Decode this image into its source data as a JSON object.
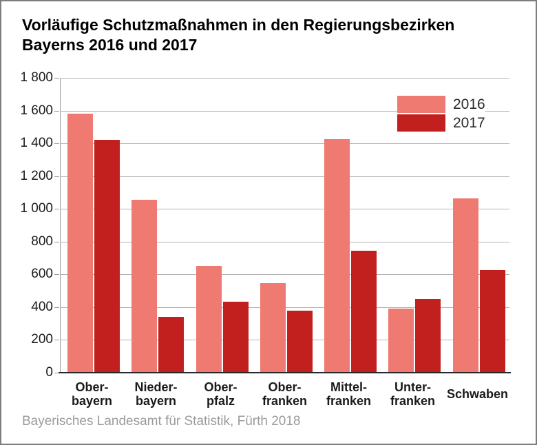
{
  "title": "Vorläufige Schutzmaßnahmen in den Regierungsbezirken Bayerns 2016 und 2017",
  "source": "Bayerisches Landesamt für Statistik, Fürth 2018",
  "colors": {
    "series_2016": "#ee7a72",
    "series_2017": "#c2201f",
    "grid": "#b3b3b3",
    "bottom_axis": "#262626",
    "left_axis": "#999999"
  },
  "chart_data": {
    "type": "bar",
    "title": "Vorläufige Schutzmaßnahmen in den Regierungsbezirken Bayerns 2016 und 2017",
    "categories": [
      {
        "lines": [
          "Ober-",
          "bayern"
        ]
      },
      {
        "lines": [
          "Nieder-",
          "bayern"
        ]
      },
      {
        "lines": [
          "Ober-",
          "pfalz"
        ]
      },
      {
        "lines": [
          "Ober-",
          "franken"
        ]
      },
      {
        "lines": [
          "Mittel-",
          "franken"
        ]
      },
      {
        "lines": [
          "Unter-",
          "franken"
        ]
      },
      {
        "lines": [
          "Schwaben"
        ]
      }
    ],
    "series": [
      {
        "name": "2016",
        "color": "#ee7a72",
        "values": [
          1580,
          1055,
          650,
          545,
          1425,
          390,
          1065
        ]
      },
      {
        "name": "2017",
        "color": "#c2201f",
        "values": [
          1420,
          340,
          435,
          380,
          745,
          450,
          625
        ]
      }
    ],
    "xlabel": "",
    "ylabel": "",
    "ylim": [
      0,
      1800
    ],
    "y_tick_step": 200,
    "y_tick_labels": [
      "0",
      "200",
      "400",
      "600",
      "800",
      "1 000",
      "1 200",
      "1 400",
      "1 600",
      "1 800"
    ],
    "grid": true,
    "legend_position": "top-right"
  }
}
